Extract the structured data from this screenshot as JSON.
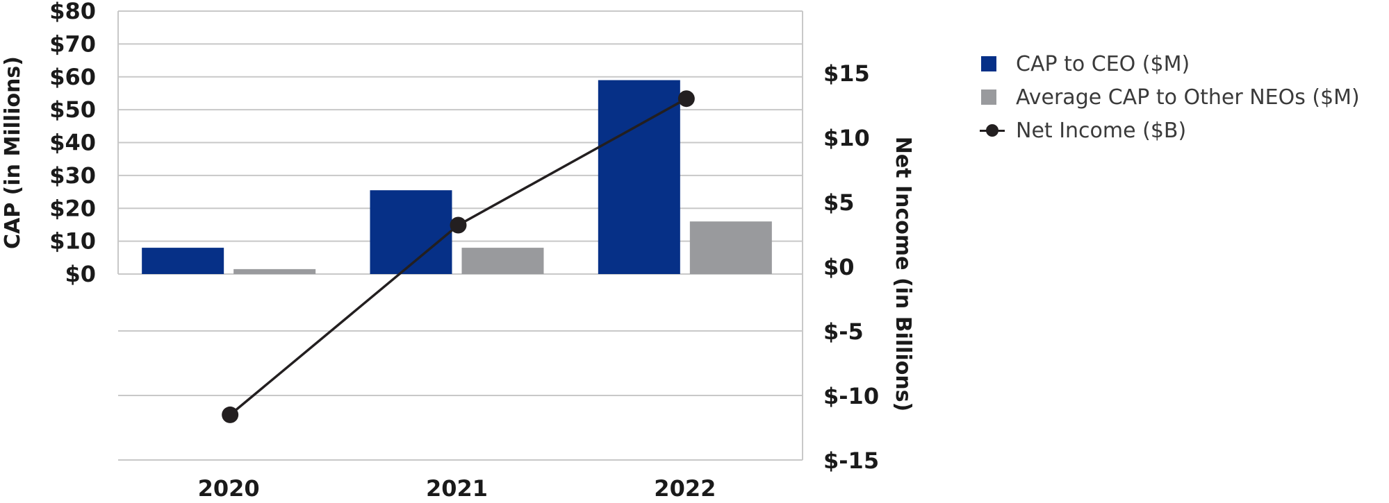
{
  "chart_data": {
    "type": "bar",
    "categories": [
      "2020",
      "2021",
      "2022"
    ],
    "series": [
      {
        "name": "CAP to CEO ($M)",
        "axis": "left",
        "kind": "bar",
        "color": "#063087",
        "values": [
          8,
          25.5,
          59
        ]
      },
      {
        "name": "Average CAP to Other NEOs ($M)",
        "axis": "left",
        "kind": "bar",
        "color": "#999a9d",
        "values": [
          1.5,
          8,
          16
        ]
      },
      {
        "name": "Net Income ($B)",
        "axis": "right",
        "kind": "line",
        "color": "#231f20",
        "values": [
          -11.5,
          3.2,
          13.0
        ]
      }
    ],
    "ylabel": "CAP (in Millions)",
    "y2label": "Net Income (in Billions)",
    "ylim": [
      0,
      80
    ],
    "y2lim": [
      -15,
      15
    ],
    "left_ticks": [
      "$0",
      "$10",
      "$20",
      "$30",
      "$40",
      "$50",
      "$60",
      "$70",
      "$80"
    ],
    "left_tick_values": [
      0,
      10,
      20,
      30,
      40,
      50,
      60,
      70,
      80
    ],
    "right_ticks": [
      "$-15",
      "$-10",
      "$-5",
      "$0",
      "$5",
      "$10",
      "$15"
    ],
    "right_tick_values": [
      -15,
      -10,
      -5,
      0,
      5,
      10,
      15
    ],
    "grid": true,
    "legend_position": "top-right",
    "legend": [
      {
        "label": "CAP to CEO ($M)",
        "marker": "square",
        "color": "#063087"
      },
      {
        "label": "Average CAP to Other NEOs ($M)",
        "marker": "square",
        "color": "#999a9d"
      },
      {
        "label": "Net Income ($B)",
        "marker": "line-dot",
        "color": "#231f20"
      }
    ]
  }
}
